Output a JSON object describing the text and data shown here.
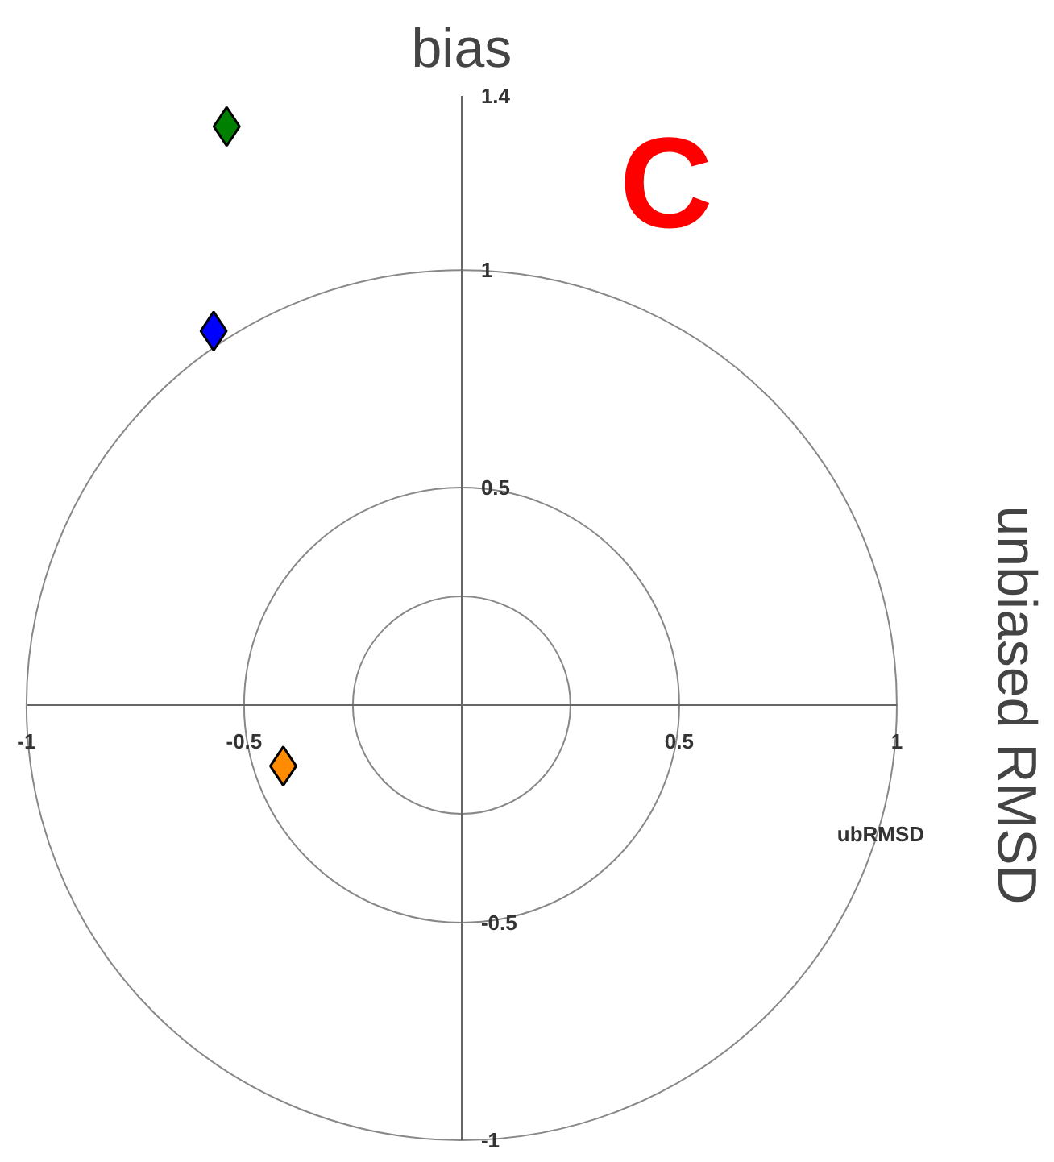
{
  "chart_data": {
    "type": "scatter",
    "xlabel": "ubRMSD",
    "ylabel": "bias",
    "annotations": [
      "C",
      "unbiased RMSD"
    ],
    "xlim": [
      -1,
      1
    ],
    "ylim": [
      -1,
      1.4
    ],
    "xticks": [
      -1,
      -0.5,
      0.5,
      1
    ],
    "yticks": [
      1.4,
      1,
      0.5,
      -0.5,
      -1
    ],
    "marker": "diamond",
    "grid": false,
    "series": [
      {
        "color": "#008000",
        "x": [
          -0.54
        ],
        "values": [
          1.33
        ]
      },
      {
        "color": "#0000ff",
        "x": [
          -0.57
        ],
        "values": [
          0.86
        ]
      },
      {
        "color": "#ff8c00",
        "x": [
          -0.41
        ],
        "values": [
          -0.14
        ]
      }
    ]
  }
}
